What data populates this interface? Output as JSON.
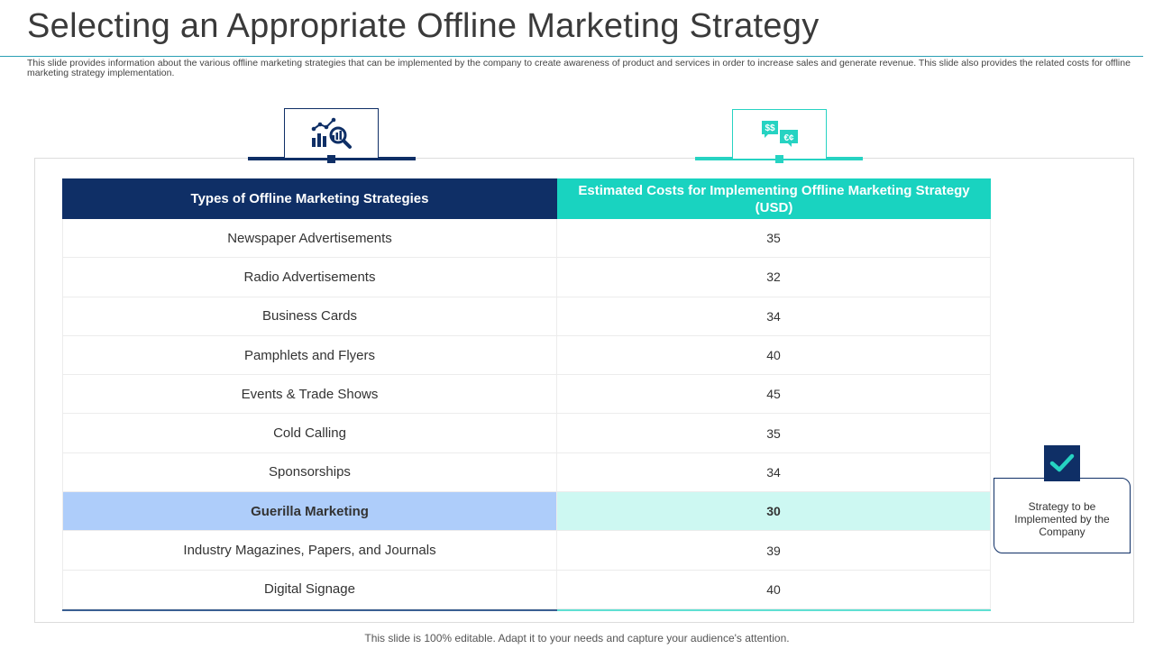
{
  "slide": {
    "title": "Selecting an Appropriate Offline Marketing Strategy",
    "subtitle": "This slide provides information about the various offline marketing strategies that can be implemented by the company to create awareness of product and services in order to increase sales and generate revenue. This slide also provides the related costs for offline marketing strategy implementation.",
    "footer": "This slide is 100% editable. Adapt it to your needs and capture your audience's attention."
  },
  "icons": {
    "left": "analytics-chart-magnifier-icon",
    "right": "currency-speech-bubbles-icon",
    "legend": "checkmark-icon"
  },
  "colors": {
    "navy": "#0f2f66",
    "teal": "#19d3c0",
    "highlight_left": "#aecdfa",
    "highlight_right": "#cdf8f2"
  },
  "table": {
    "headers": [
      "Types of Offline Marketing Strategies",
      "Estimated Costs for Implementing Offline Marketing Strategy (USD)"
    ],
    "rows": [
      {
        "strategy": "Newspaper Advertisements",
        "cost": "35"
      },
      {
        "strategy": "Radio Advertisements",
        "cost": "32"
      },
      {
        "strategy": "Business Cards",
        "cost": "34"
      },
      {
        "strategy": "Pamphlets and Flyers",
        "cost": "40"
      },
      {
        "strategy": "Events & Trade Shows",
        "cost": "45"
      },
      {
        "strategy": "Cold Calling",
        "cost": "35"
      },
      {
        "strategy": "Sponsorships",
        "cost": "34"
      },
      {
        "strategy": "Guerilla Marketing",
        "cost": "30",
        "highlighted": true
      },
      {
        "strategy": "Industry Magazines, Papers, and Journals",
        "cost": "39"
      },
      {
        "strategy": "Digital Signage",
        "cost": "40"
      }
    ]
  },
  "legend": {
    "label": "Strategy to be Implemented by the Company"
  }
}
